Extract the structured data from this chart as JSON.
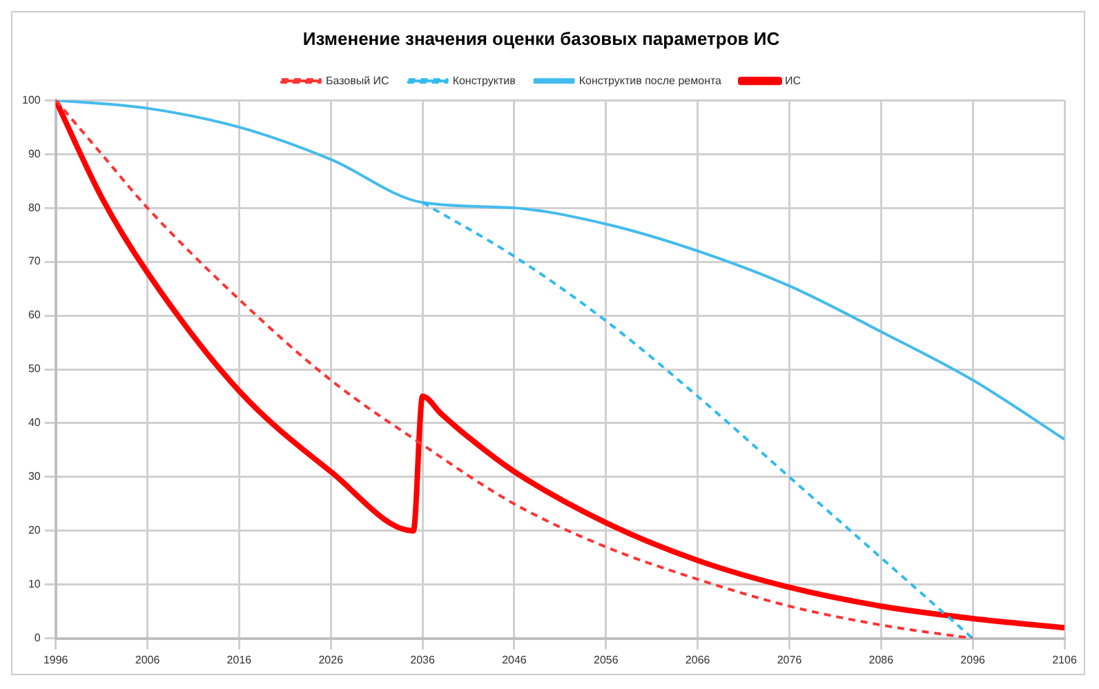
{
  "chart_data": {
    "type": "line",
    "title": "Изменение значения оценки базовых параметров ИС",
    "xlim": [
      1996,
      2106
    ],
    "xticks": [
      1996,
      2006,
      2016,
      2026,
      2036,
      2046,
      2056,
      2066,
      2076,
      2086,
      2096,
      2106
    ],
    "ylim": [
      0,
      100
    ],
    "yticks": [
      0,
      10,
      20,
      30,
      40,
      50,
      60,
      70,
      80,
      90,
      100
    ],
    "grid": true,
    "legend": "top",
    "marker": "none",
    "series": [
      {
        "name": "Базовый ИС",
        "color": "#ff3333",
        "line_style": "dashed",
        "x": [
          1996,
          2001,
          2006,
          2016,
          2026,
          2036,
          2046,
          2056,
          2066,
          2076,
          2086,
          2096
        ],
        "values": [
          100,
          90,
          80,
          63,
          48,
          36,
          25,
          17,
          11,
          6,
          2.5,
          0
        ]
      },
      {
        "name": "Конструктив",
        "color": "#33bbee",
        "line_style": "dashed",
        "x": [
          2036,
          2046,
          2056,
          2066,
          2076,
          2086,
          2096
        ],
        "values": [
          81,
          71,
          59,
          45,
          30,
          15,
          0
        ]
      },
      {
        "name": "Конструктив после ремонта",
        "color": "#44bbee",
        "line_style": "solid",
        "x": [
          1996,
          2006,
          2016,
          2026,
          2036,
          2046,
          2056,
          2066,
          2076,
          2086,
          2096,
          2106
        ],
        "values": [
          100,
          98.5,
          95,
          89,
          81,
          80,
          77,
          72,
          65.5,
          57,
          48,
          37
        ]
      },
      {
        "name": "ИС",
        "color": "#ff0000",
        "line_style": "solid",
        "x": [
          1996,
          2001,
          2006,
          2016,
          2026,
          2035,
          2036,
          2038,
          2041,
          2046,
          2056,
          2066,
          2076,
          2086,
          2096,
          2106
        ],
        "values": [
          100,
          82,
          68,
          46,
          31,
          20,
          45,
          41.8,
          37.4,
          31,
          21.5,
          14.5,
          9.5,
          6,
          3.7,
          2
        ]
      }
    ]
  }
}
